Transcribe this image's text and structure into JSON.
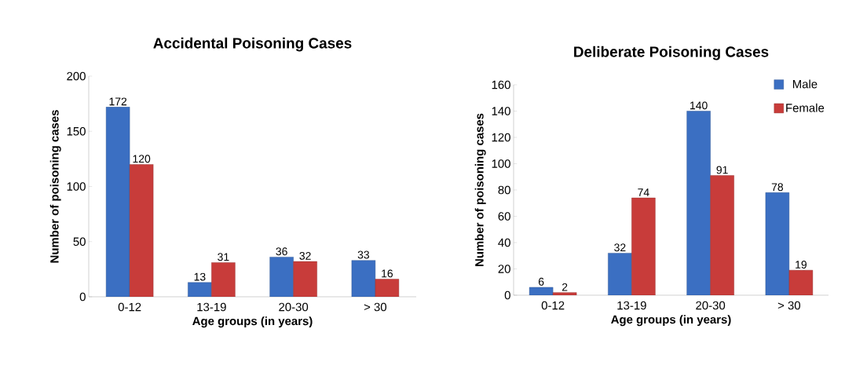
{
  "chart_data": [
    {
      "type": "bar",
      "title": "Accidental Poisoning Cases",
      "xlabel": "Age groups (in years)",
      "ylabel": "Number of poisoning cases",
      "categories": [
        "0-12",
        "13-19",
        "20-30",
        "> 30"
      ],
      "series": [
        {
          "color": "#3b6fc2",
          "values": [
            172,
            13,
            36,
            33
          ]
        },
        {
          "color": "#c83c3a",
          "values": [
            120,
            31,
            32,
            16
          ]
        }
      ],
      "ylim": [
        0,
        200
      ],
      "yticks": [
        0,
        50,
        100,
        150,
        200
      ],
      "data_labels": true
    },
    {
      "type": "bar",
      "title": "Deliberate Poisoning Cases",
      "xlabel": "Age groups (in years)",
      "ylabel": "Number of poisoning cases",
      "categories": [
        "0-12",
        "13-19",
        "20-30",
        "> 30"
      ],
      "series": [
        {
          "name": "Male",
          "color": "#3b6fc2",
          "values": [
            6,
            32,
            140,
            78
          ]
        },
        {
          "name": "Female",
          "color": "#c83c3a",
          "values": [
            2,
            74,
            91,
            19
          ]
        }
      ],
      "ylim": [
        0,
        160
      ],
      "yticks": [
        0,
        20,
        40,
        60,
        80,
        100,
        120,
        140,
        160
      ],
      "data_labels": true,
      "legend": "top right"
    }
  ]
}
